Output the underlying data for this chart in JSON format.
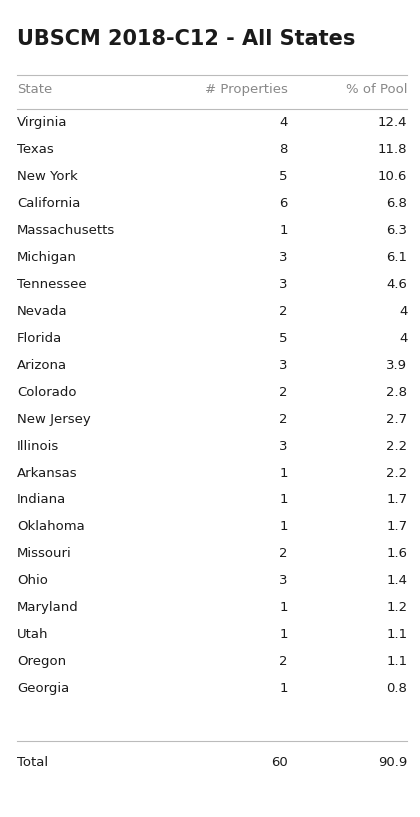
{
  "title": "UBSCM 2018-C12 - All States",
  "header": [
    "State",
    "# Properties",
    "% of Pool"
  ],
  "rows": [
    [
      "Virginia",
      "4",
      "12.4"
    ],
    [
      "Texas",
      "8",
      "11.8"
    ],
    [
      "New York",
      "5",
      "10.6"
    ],
    [
      "California",
      "6",
      "6.8"
    ],
    [
      "Massachusetts",
      "1",
      "6.3"
    ],
    [
      "Michigan",
      "3",
      "6.1"
    ],
    [
      "Tennessee",
      "3",
      "4.6"
    ],
    [
      "Nevada",
      "2",
      "4"
    ],
    [
      "Florida",
      "5",
      "4"
    ],
    [
      "Arizona",
      "3",
      "3.9"
    ],
    [
      "Colorado",
      "2",
      "2.8"
    ],
    [
      "New Jersey",
      "2",
      "2.7"
    ],
    [
      "Illinois",
      "3",
      "2.2"
    ],
    [
      "Arkansas",
      "1",
      "2.2"
    ],
    [
      "Indiana",
      "1",
      "1.7"
    ],
    [
      "Oklahoma",
      "1",
      "1.7"
    ],
    [
      "Missouri",
      "2",
      "1.6"
    ],
    [
      "Ohio",
      "3",
      "1.4"
    ],
    [
      "Maryland",
      "1",
      "1.2"
    ],
    [
      "Utah",
      "1",
      "1.1"
    ],
    [
      "Oregon",
      "2",
      "1.1"
    ],
    [
      "Georgia",
      "1",
      "0.8"
    ]
  ],
  "total": [
    "Total",
    "60",
    "90.9"
  ],
  "bg_color": "#ffffff",
  "title_color": "#1a1a1a",
  "header_color": "#888888",
  "row_color": "#1a1a1a",
  "line_color": "#bbbbbb",
  "title_fontsize": 15,
  "header_fontsize": 9.5,
  "row_fontsize": 9.5,
  "total_fontsize": 9.5
}
